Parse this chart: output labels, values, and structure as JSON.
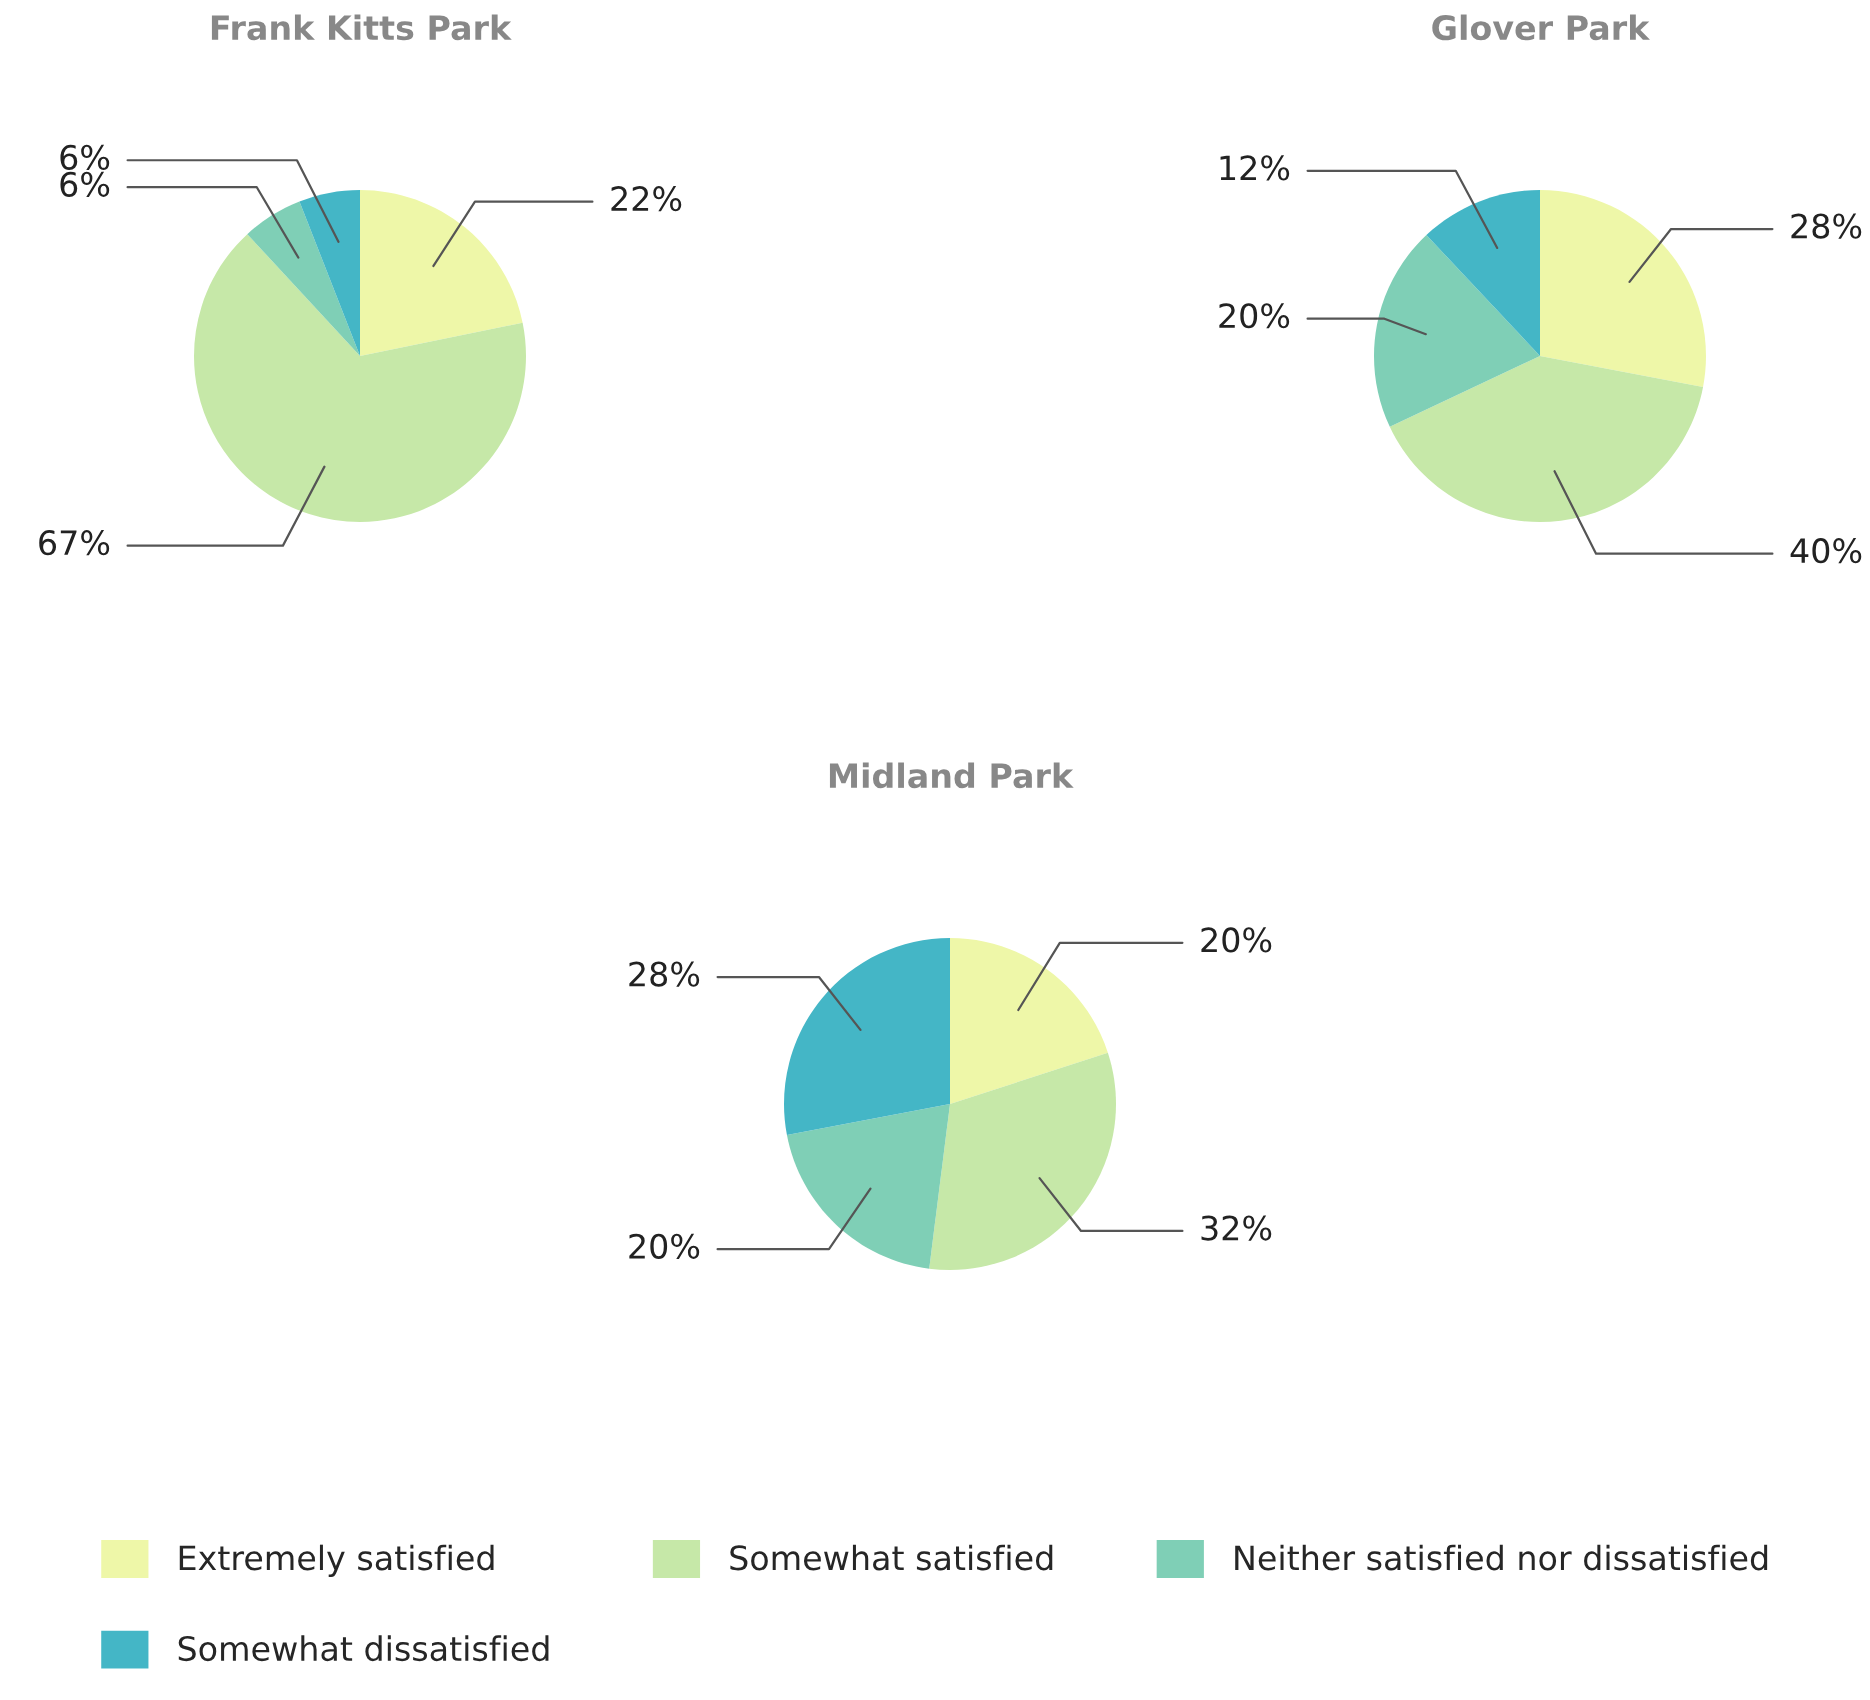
{
  "chart_data": [
    {
      "type": "pie",
      "title": "Frank Kitts Park",
      "categories": [
        "Extremely satisfied",
        "Somewhat satisfied",
        "Neither satisfied nor dissatisfied",
        "Somewhat dissatisfied"
      ],
      "values": [
        22,
        67,
        6,
        6
      ],
      "value_labels": [
        "22%",
        "67%",
        "6%",
        "6%"
      ],
      "colors": [
        "#eef7a8",
        "#c6e8a8",
        "#7fcfb6",
        "#44b6c6"
      ],
      "legend": "bottom"
    },
    {
      "type": "pie",
      "title": "Glover Park",
      "categories": [
        null,
        null,
        null,
        null
      ],
      "values": [
        28,
        40,
        20,
        12
      ],
      "value_labels": [
        "28%",
        "40%",
        "20%",
        "12%"
      ],
      "colors": [
        "#eef7a8",
        "#c6e8a8",
        "#7fcfb6",
        "#44b6c6"
      ]
    },
    {
      "type": "pie",
      "title": "Midland Park",
      "categories": [
        null,
        null,
        null,
        null
      ],
      "values": [
        20,
        32,
        20,
        28
      ],
      "value_labels": [
        "20%",
        "32%",
        "20%",
        "28%"
      ],
      "colors": [
        "#eef7a8",
        "#c6e8a8",
        "#7fcfb6",
        "#44b6c6"
      ]
    }
  ]
}
